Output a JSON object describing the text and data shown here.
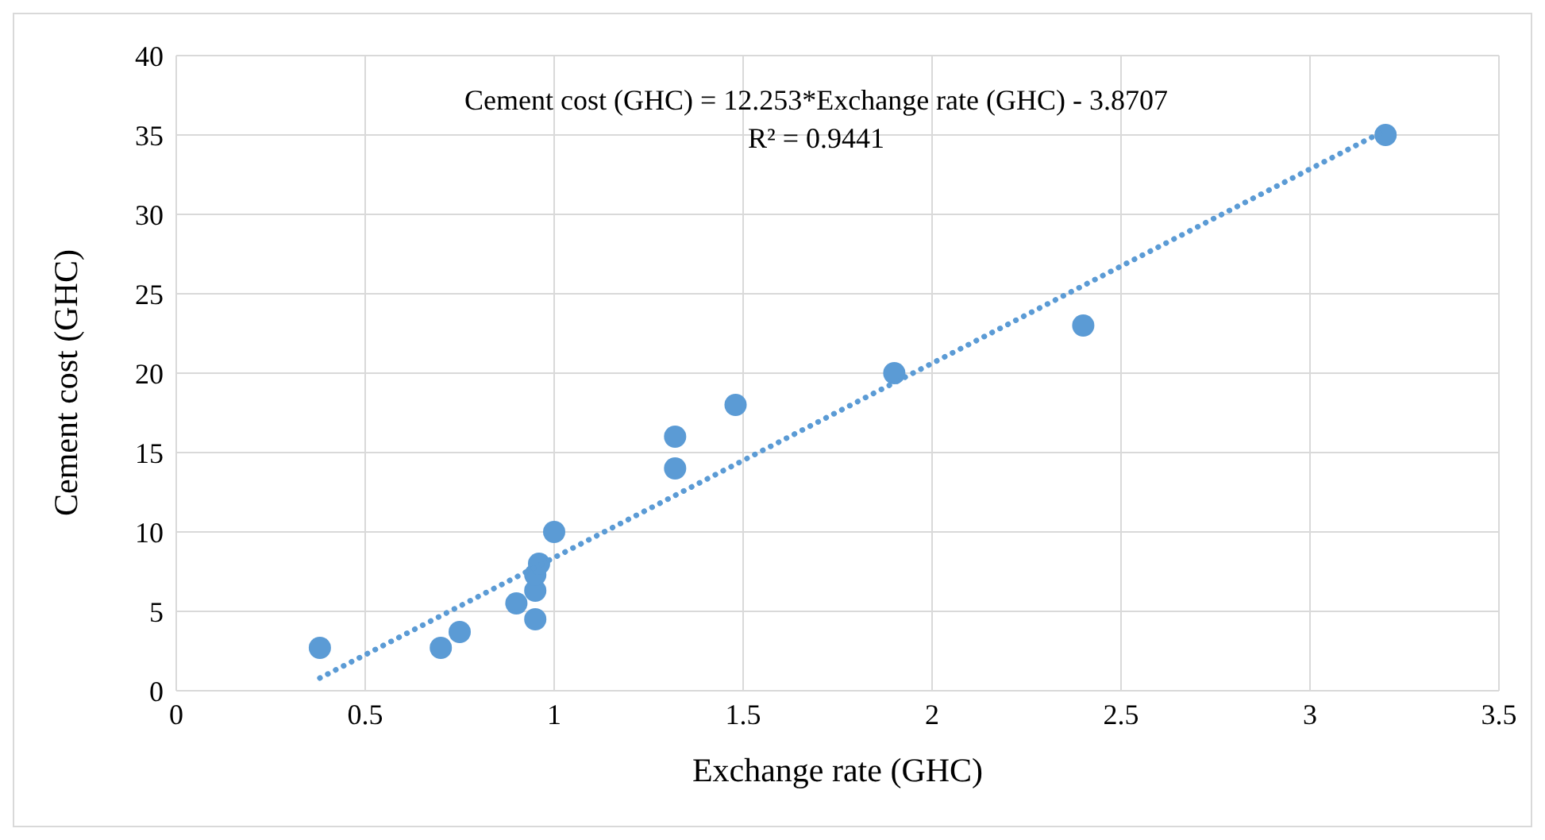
{
  "chart_data": {
    "type": "scatter",
    "xlabel": "Exchange rate (GHC)",
    "ylabel": "Cement cost (GHC)",
    "annotations": [
      "Cement cost (GHC) = 12.253*Exchange rate (GHC) - 3.8707",
      "R² = 0.9441"
    ],
    "xlim": [
      0,
      3.5
    ],
    "xticks": [
      0,
      0.5,
      1,
      1.5,
      2,
      2.5,
      3,
      3.5
    ],
    "ylim": [
      0,
      40
    ],
    "yticks": [
      0,
      5,
      10,
      15,
      20,
      25,
      30,
      35,
      40
    ],
    "grid": true,
    "legend": false,
    "marker": "circle",
    "series": [
      {
        "color": "#5b9bd5",
        "x": [
          0.38,
          0.7,
          0.75,
          0.9,
          0.95,
          0.95,
          0.95,
          0.96,
          1.0,
          1.32,
          1.32,
          1.48,
          1.9,
          2.4,
          3.2
        ],
        "values": [
          2.7,
          2.7,
          3.7,
          5.5,
          4.5,
          6.3,
          7.3,
          8,
          10,
          14,
          16,
          18,
          20,
          23,
          35
        ]
      },
      {
        "type": "line",
        "color": "#5b9bd5",
        "line_style": "dotted",
        "marker": "none",
        "x": [
          0.38,
          3.2
        ],
        "values": [
          0.8,
          35.3
        ]
      }
    ]
  }
}
